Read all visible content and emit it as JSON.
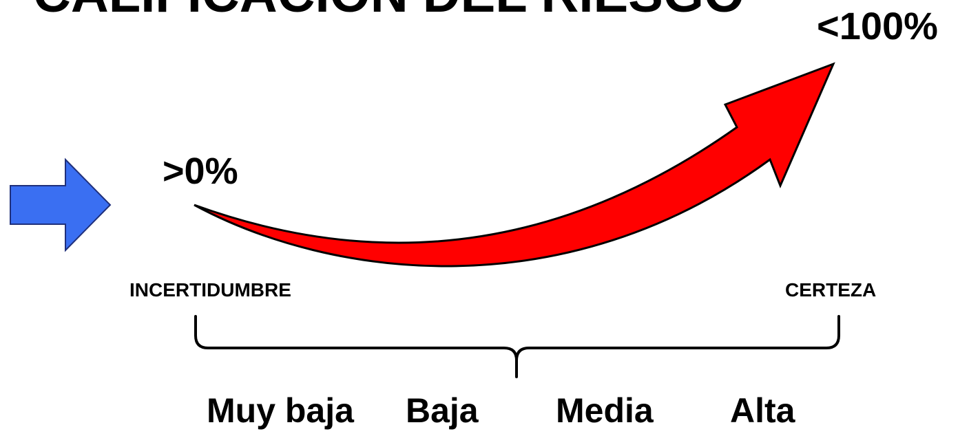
{
  "title": "CALIFICACIÓN DEL RIESGO",
  "range": {
    "high_label": "<100%",
    "low_label": ">0%"
  },
  "ends": {
    "left": "INCERTIDUMBRE",
    "right": "CERTEZA"
  },
  "levels": [
    "Muy baja",
    "Baja",
    "Media",
    "Alta"
  ],
  "colors": {
    "curved_arrow": "#ff0000",
    "side_arrow": "#3a6ff2",
    "outline": "#000000"
  }
}
